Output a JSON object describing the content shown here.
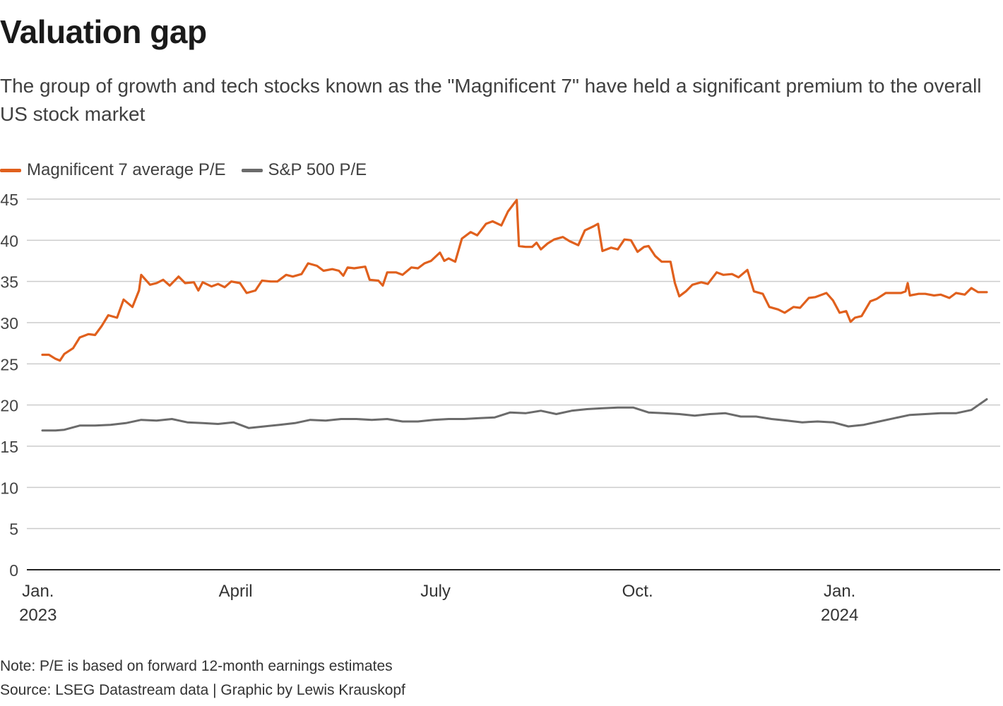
{
  "title": "Valuation gap",
  "subtitle": "The group of growth and tech stocks known as the \"Magnificent 7\" have held a significant premium to the overall US stock market",
  "note": "Note: P/E is based on forward 12-month earnings estimates",
  "source": "Source: LSEG Datastream data | Graphic by Lewis Krauskopf",
  "colors": {
    "mag7": "#e0601d",
    "sp500": "#6b6b6b",
    "grid": "#cccccc",
    "axis": "#222222"
  },
  "chart_data": {
    "type": "line",
    "ylim": [
      0,
      45
    ],
    "yticks": [
      0,
      5,
      10,
      15,
      20,
      25,
      30,
      35,
      40,
      45
    ],
    "grid": true,
    "legend_position": "top-left",
    "x_range": [
      "2023-01-03",
      "2024-03-08"
    ],
    "xticks": [
      {
        "date": "2023-01-01",
        "label": "Jan.",
        "sublabel": "2023"
      },
      {
        "date": "2023-04-01",
        "label": "April",
        "sublabel": ""
      },
      {
        "date": "2023-07-01",
        "label": "July",
        "sublabel": ""
      },
      {
        "date": "2023-10-01",
        "label": "Oct.",
        "sublabel": ""
      },
      {
        "date": "2024-01-01",
        "label": "Jan.",
        "sublabel": "2024"
      }
    ],
    "series": [
      {
        "name": "Magnificent 7 average P/E",
        "points": [
          [
            "2023-01-03",
            26.1
          ],
          [
            "2023-01-06",
            26.1
          ],
          [
            "2023-01-09",
            25.6
          ],
          [
            "2023-01-11",
            25.4
          ],
          [
            "2023-01-13",
            26.2
          ],
          [
            "2023-01-17",
            26.9
          ],
          [
            "2023-01-20",
            28.2
          ],
          [
            "2023-01-24",
            28.6
          ],
          [
            "2023-01-27",
            28.5
          ],
          [
            "2023-01-30",
            29.6
          ],
          [
            "2023-02-02",
            30.9
          ],
          [
            "2023-02-06",
            30.6
          ],
          [
            "2023-02-09",
            32.8
          ],
          [
            "2023-02-13",
            31.9
          ],
          [
            "2023-02-16",
            33.9
          ],
          [
            "2023-02-17",
            35.8
          ],
          [
            "2023-02-21",
            34.6
          ],
          [
            "2023-02-24",
            34.8
          ],
          [
            "2023-02-27",
            35.2
          ],
          [
            "2023-03-02",
            34.5
          ],
          [
            "2023-03-06",
            35.6
          ],
          [
            "2023-03-09",
            34.8
          ],
          [
            "2023-03-13",
            34.9
          ],
          [
            "2023-03-15",
            33.9
          ],
          [
            "2023-03-17",
            34.9
          ],
          [
            "2023-03-21",
            34.4
          ],
          [
            "2023-03-24",
            34.7
          ],
          [
            "2023-03-27",
            34.3
          ],
          [
            "2023-03-30",
            35.0
          ],
          [
            "2023-04-03",
            34.8
          ],
          [
            "2023-04-06",
            33.6
          ],
          [
            "2023-04-10",
            33.9
          ],
          [
            "2023-04-13",
            35.1
          ],
          [
            "2023-04-17",
            35.0
          ],
          [
            "2023-04-20",
            35.0
          ],
          [
            "2023-04-24",
            35.8
          ],
          [
            "2023-04-27",
            35.6
          ],
          [
            "2023-05-01",
            35.9
          ],
          [
            "2023-05-04",
            37.2
          ],
          [
            "2023-05-08",
            36.9
          ],
          [
            "2023-05-11",
            36.3
          ],
          [
            "2023-05-15",
            36.5
          ],
          [
            "2023-05-18",
            36.3
          ],
          [
            "2023-05-20",
            35.7
          ],
          [
            "2023-05-22",
            36.7
          ],
          [
            "2023-05-25",
            36.6
          ],
          [
            "2023-05-30",
            36.8
          ],
          [
            "2023-06-01",
            35.2
          ],
          [
            "2023-06-05",
            35.1
          ],
          [
            "2023-06-07",
            34.5
          ],
          [
            "2023-06-09",
            36.1
          ],
          [
            "2023-06-13",
            36.1
          ],
          [
            "2023-06-16",
            35.8
          ],
          [
            "2023-06-20",
            36.7
          ],
          [
            "2023-06-23",
            36.6
          ],
          [
            "2023-06-26",
            37.2
          ],
          [
            "2023-06-29",
            37.5
          ],
          [
            "2023-07-03",
            38.5
          ],
          [
            "2023-07-05",
            37.5
          ],
          [
            "2023-07-07",
            37.8
          ],
          [
            "2023-07-10",
            37.4
          ],
          [
            "2023-07-13",
            40.2
          ],
          [
            "2023-07-17",
            41.0
          ],
          [
            "2023-07-20",
            40.6
          ],
          [
            "2023-07-24",
            42.0
          ],
          [
            "2023-07-27",
            42.3
          ],
          [
            "2023-07-31",
            41.8
          ],
          [
            "2023-08-03",
            43.5
          ],
          [
            "2023-08-07",
            44.9
          ],
          [
            "2023-08-08",
            39.3
          ],
          [
            "2023-08-11",
            39.2
          ],
          [
            "2023-08-14",
            39.2
          ],
          [
            "2023-08-16",
            39.7
          ],
          [
            "2023-08-18",
            38.9
          ],
          [
            "2023-08-21",
            39.6
          ],
          [
            "2023-08-24",
            40.1
          ],
          [
            "2023-08-28",
            40.4
          ],
          [
            "2023-08-31",
            39.9
          ],
          [
            "2023-09-04",
            39.4
          ],
          [
            "2023-09-07",
            41.2
          ],
          [
            "2023-09-11",
            41.7
          ],
          [
            "2023-09-13",
            42.0
          ],
          [
            "2023-09-15",
            38.7
          ],
          [
            "2023-09-19",
            39.1
          ],
          [
            "2023-09-22",
            38.9
          ],
          [
            "2023-09-25",
            40.1
          ],
          [
            "2023-09-28",
            40.0
          ],
          [
            "2023-10-01",
            38.6
          ],
          [
            "2023-10-04",
            39.2
          ],
          [
            "2023-10-06",
            39.3
          ],
          [
            "2023-10-09",
            38.1
          ],
          [
            "2023-10-12",
            37.4
          ],
          [
            "2023-10-16",
            37.4
          ],
          [
            "2023-10-18",
            34.8
          ],
          [
            "2023-10-20",
            33.2
          ],
          [
            "2023-10-23",
            33.8
          ],
          [
            "2023-10-26",
            34.6
          ],
          [
            "2023-10-30",
            34.9
          ],
          [
            "2023-11-02",
            34.7
          ],
          [
            "2023-11-06",
            36.1
          ],
          [
            "2023-11-09",
            35.8
          ],
          [
            "2023-11-13",
            35.9
          ],
          [
            "2023-11-16",
            35.5
          ],
          [
            "2023-11-20",
            36.4
          ],
          [
            "2023-11-23",
            33.8
          ],
          [
            "2023-11-27",
            33.5
          ],
          [
            "2023-11-30",
            31.9
          ],
          [
            "2023-12-04",
            31.6
          ],
          [
            "2023-12-07",
            31.2
          ],
          [
            "2023-12-11",
            31.9
          ],
          [
            "2023-12-14",
            31.8
          ],
          [
            "2023-12-18",
            33.0
          ],
          [
            "2023-12-21",
            33.1
          ],
          [
            "2023-12-26",
            33.6
          ],
          [
            "2023-12-29",
            32.7
          ],
          [
            "2024-01-01",
            31.2
          ],
          [
            "2024-01-04",
            31.4
          ],
          [
            "2024-01-06",
            30.1
          ],
          [
            "2024-01-08",
            30.6
          ],
          [
            "2024-01-11",
            30.8
          ],
          [
            "2024-01-15",
            32.6
          ],
          [
            "2024-01-18",
            32.9
          ],
          [
            "2024-01-22",
            33.6
          ],
          [
            "2024-01-25",
            33.6
          ],
          [
            "2024-01-29",
            33.6
          ],
          [
            "2024-01-31",
            33.8
          ],
          [
            "2024-02-01",
            34.8
          ],
          [
            "2024-02-02",
            33.3
          ],
          [
            "2024-02-06",
            33.5
          ],
          [
            "2024-02-09",
            33.5
          ],
          [
            "2024-02-13",
            33.3
          ],
          [
            "2024-02-16",
            33.4
          ],
          [
            "2024-02-20",
            33.0
          ],
          [
            "2024-02-23",
            33.6
          ],
          [
            "2024-02-27",
            33.4
          ],
          [
            "2024-03-01",
            34.2
          ],
          [
            "2024-03-04",
            33.7
          ],
          [
            "2024-03-08",
            33.7
          ]
        ]
      },
      {
        "name": "S&P 500 P/E",
        "points": [
          [
            "2023-01-03",
            16.9
          ],
          [
            "2023-01-09",
            16.9
          ],
          [
            "2023-01-13",
            17.0
          ],
          [
            "2023-01-20",
            17.5
          ],
          [
            "2023-01-27",
            17.5
          ],
          [
            "2023-02-03",
            17.6
          ],
          [
            "2023-02-10",
            17.8
          ],
          [
            "2023-02-17",
            18.2
          ],
          [
            "2023-02-24",
            18.1
          ],
          [
            "2023-03-03",
            18.3
          ],
          [
            "2023-03-10",
            17.9
          ],
          [
            "2023-03-17",
            17.8
          ],
          [
            "2023-03-24",
            17.7
          ],
          [
            "2023-03-31",
            17.9
          ],
          [
            "2023-04-07",
            17.2
          ],
          [
            "2023-04-14",
            17.4
          ],
          [
            "2023-04-21",
            17.6
          ],
          [
            "2023-04-28",
            17.8
          ],
          [
            "2023-05-05",
            18.2
          ],
          [
            "2023-05-12",
            18.1
          ],
          [
            "2023-05-19",
            18.3
          ],
          [
            "2023-05-26",
            18.3
          ],
          [
            "2023-06-02",
            18.2
          ],
          [
            "2023-06-09",
            18.3
          ],
          [
            "2023-06-16",
            18.0
          ],
          [
            "2023-06-23",
            18.0
          ],
          [
            "2023-06-30",
            18.2
          ],
          [
            "2023-07-07",
            18.3
          ],
          [
            "2023-07-14",
            18.3
          ],
          [
            "2023-07-21",
            18.4
          ],
          [
            "2023-07-28",
            18.5
          ],
          [
            "2023-08-04",
            19.1
          ],
          [
            "2023-08-11",
            19.0
          ],
          [
            "2023-08-18",
            19.3
          ],
          [
            "2023-08-25",
            18.9
          ],
          [
            "2023-09-01",
            19.3
          ],
          [
            "2023-09-08",
            19.5
          ],
          [
            "2023-09-15",
            19.6
          ],
          [
            "2023-09-22",
            19.7
          ],
          [
            "2023-09-29",
            19.7
          ],
          [
            "2023-10-06",
            19.1
          ],
          [
            "2023-10-13",
            19.0
          ],
          [
            "2023-10-20",
            18.9
          ],
          [
            "2023-10-27",
            18.7
          ],
          [
            "2023-11-03",
            18.9
          ],
          [
            "2023-11-10",
            19.0
          ],
          [
            "2023-11-17",
            18.6
          ],
          [
            "2023-11-24",
            18.6
          ],
          [
            "2023-12-01",
            18.3
          ],
          [
            "2023-12-08",
            18.1
          ],
          [
            "2023-12-15",
            17.9
          ],
          [
            "2023-12-22",
            18.0
          ],
          [
            "2023-12-29",
            17.9
          ],
          [
            "2024-01-05",
            17.4
          ],
          [
            "2024-01-12",
            17.6
          ],
          [
            "2024-01-19",
            18.0
          ],
          [
            "2024-01-26",
            18.4
          ],
          [
            "2024-02-02",
            18.8
          ],
          [
            "2024-02-09",
            18.9
          ],
          [
            "2024-02-16",
            19.0
          ],
          [
            "2024-02-23",
            19.0
          ],
          [
            "2024-03-01",
            19.4
          ],
          [
            "2024-03-08",
            20.7
          ]
        ]
      }
    ]
  }
}
